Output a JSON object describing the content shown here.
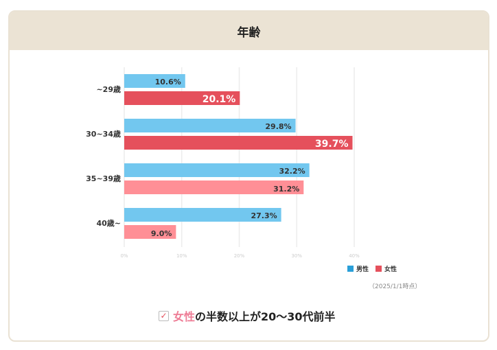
{
  "header": {
    "title": "年齢"
  },
  "chart_data": {
    "type": "bar",
    "orientation": "horizontal",
    "categories": [
      "~29歳",
      "30~34歳",
      "35~39歳",
      "40歳~"
    ],
    "series": [
      {
        "name": "男性",
        "values": [
          10.6,
          29.8,
          32.2,
          27.3
        ],
        "color": "#72c7ef"
      },
      {
        "name": "女性",
        "values": [
          20.1,
          39.7,
          31.2,
          9.0
        ],
        "colors": [
          "#e5505c",
          "#e5505c",
          "#ff8f96",
          "#ff8f96"
        ]
      }
    ],
    "xticks": [
      "0%",
      "10%",
      "20%",
      "30%",
      "40%"
    ],
    "xlim": [
      0,
      40
    ],
    "grid": true,
    "legend": "bottom-right"
  },
  "legend": {
    "male": "男性",
    "female": "女性",
    "male_color": "#2a9fd8",
    "female_color": "#e5505c"
  },
  "date_note": "（2025/1/1時点）",
  "note": {
    "highlight": "女性",
    "rest": "の半数以上が20〜30代前半"
  }
}
